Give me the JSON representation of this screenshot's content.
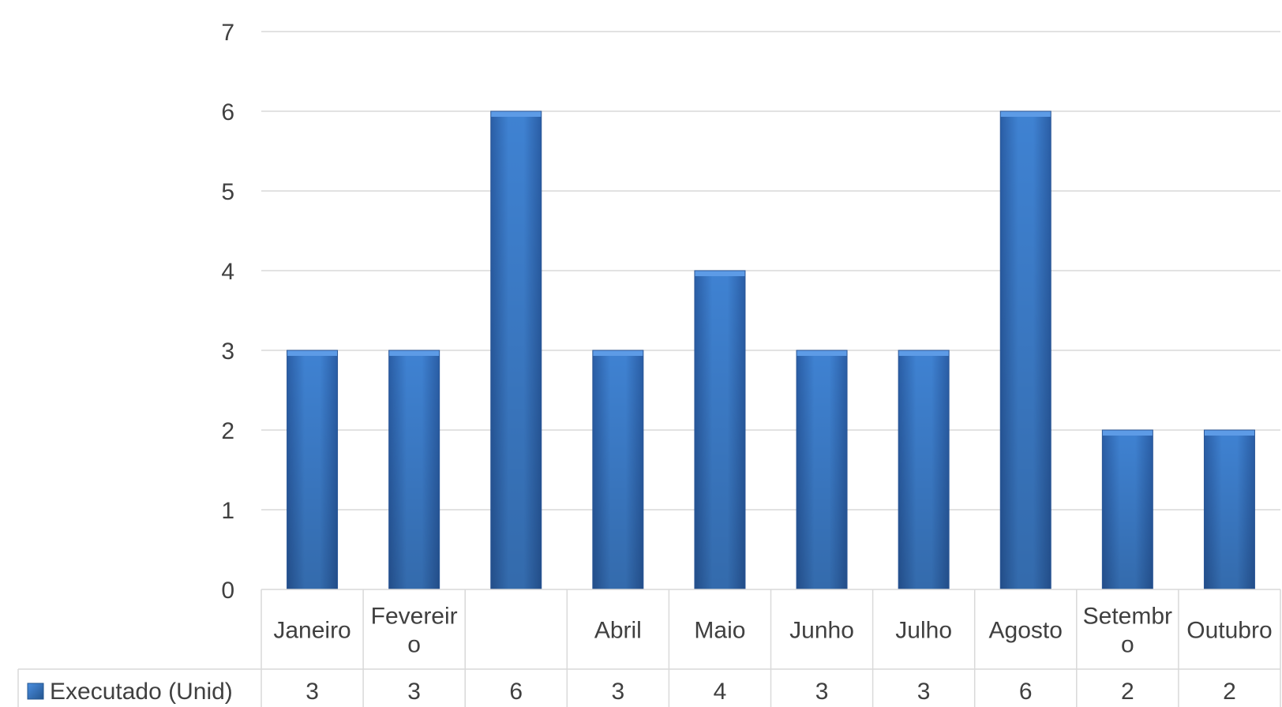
{
  "chart_data": {
    "type": "bar",
    "categories": [
      [
        "Janeiro"
      ],
      [
        "Fevereir",
        "o"
      ],
      [
        ""
      ],
      [
        "Abril"
      ],
      [
        "Maio"
      ],
      [
        "Junho"
      ],
      [
        "Julho"
      ],
      [
        "Agosto"
      ],
      [
        "Setembr",
        "o"
      ],
      [
        "Outubro"
      ]
    ],
    "series": [
      {
        "name": "Executado (Unid)",
        "values": [
          3,
          3,
          6,
          3,
          4,
          3,
          3,
          6,
          2,
          2
        ],
        "color": "#3a78c8"
      }
    ],
    "ylim": [
      0,
      7
    ],
    "yticks": [
      0,
      1,
      2,
      3,
      4,
      5,
      6,
      7
    ],
    "grid": true,
    "legend": "data-table-left",
    "data_table": true
  }
}
